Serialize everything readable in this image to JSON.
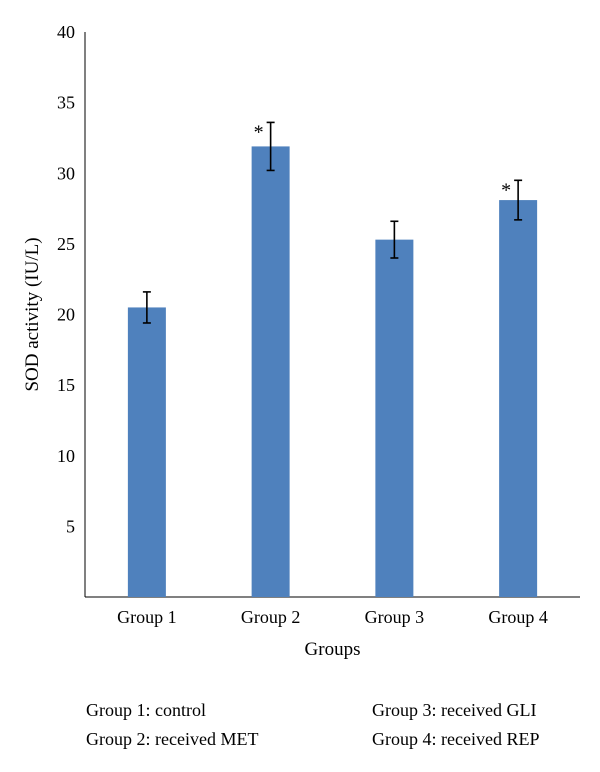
{
  "chart_data": {
    "type": "bar",
    "categories": [
      "Group 1",
      "Group 2",
      "Group 3",
      "Group 4"
    ],
    "values": [
      20.5,
      31.9,
      25.3,
      28.1
    ],
    "error": [
      1.1,
      1.7,
      1.3,
      1.4
    ],
    "markers": [
      "",
      "*",
      "",
      "*"
    ],
    "xlabel": "Groups",
    "ylabel": "SOD activity (IU/L)",
    "ylim": [
      0,
      40
    ],
    "yticks": [
      5,
      10,
      15,
      20,
      25,
      30,
      35,
      40
    ],
    "bar_color": "#4F81BD",
    "grid": false
  },
  "legend": {
    "left": [
      "Group 1: control",
      "Group 2: received MET"
    ],
    "right": [
      "Group 3: received GLI",
      "Group 4: received REP"
    ]
  }
}
